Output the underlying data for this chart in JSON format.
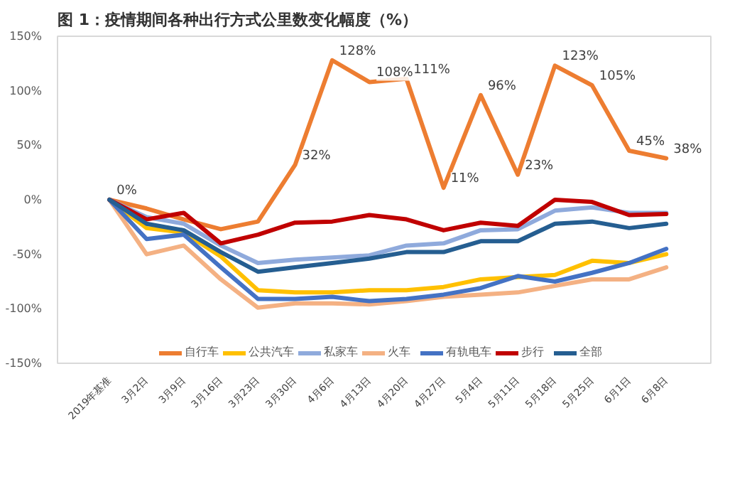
{
  "chart_data": {
    "type": "line",
    "title": "图 1：疫情期间各种出行方式公里数变化幅度（%）",
    "categories": [
      "2019年基准",
      "3月2日",
      "3月9日",
      "3月16日",
      "3月23日",
      "3月30日",
      "4月6日",
      "4月13日",
      "4月20日",
      "4月27日",
      "5月4日",
      "5月11日",
      "5月18日",
      "5月25日",
      "6月1日",
      "6月8日"
    ],
    "ylim": [
      -150,
      150
    ],
    "yticks": [
      {
        "value": -150,
        "label": "-150%"
      },
      {
        "value": -100,
        "label": "-100%"
      },
      {
        "value": -50,
        "label": "-50%"
      },
      {
        "value": 0,
        "label": "0%"
      },
      {
        "value": 50,
        "label": "50%"
      },
      {
        "value": 100,
        "label": "100%"
      },
      {
        "value": 150,
        "label": "150%"
      }
    ],
    "grid": false,
    "legend": "bottom",
    "marker": "none",
    "line_style": "solid",
    "series": [
      {
        "name": "自行车",
        "color": "#ed7d31",
        "values": [
          0,
          -8,
          -18,
          -27,
          -20,
          32,
          128,
          108,
          111,
          11,
          96,
          23,
          123,
          105,
          45,
          38
        ],
        "value_labels": [
          "0%",
          null,
          null,
          null,
          null,
          "32%",
          "128%",
          "108%",
          "111%",
          "11%",
          "96%",
          "23%",
          "123%",
          "105%",
          "45%",
          "38%"
        ]
      },
      {
        "name": "公共汽车",
        "color": "#ffc000",
        "values": [
          0,
          -26,
          -30,
          -52,
          -83,
          -85,
          -85,
          -83,
          -83,
          -80,
          -73,
          -71,
          -69,
          -56,
          -58,
          -50
        ]
      },
      {
        "name": "私家车",
        "color": "#8faadc",
        "values": [
          0,
          -16,
          -22,
          -42,
          -58,
          -55,
          -53,
          -51,
          -42,
          -40,
          -28,
          -27,
          -10,
          -7,
          -12,
          -12
        ]
      },
      {
        "name": "火车",
        "color": "#f4b183",
        "values": [
          0,
          -50,
          -42,
          -73,
          -99,
          -95,
          -95,
          -96,
          -93,
          -89,
          -87,
          -85,
          -79,
          -73,
          -73,
          -62
        ]
      },
      {
        "name": "有轨电车",
        "color": "#4472c4",
        "values": [
          0,
          -36,
          -32,
          -62,
          -91,
          -91,
          -89,
          -93,
          -91,
          -87,
          -81,
          -70,
          -75,
          -67,
          -58,
          -45
        ]
      },
      {
        "name": "步行",
        "color": "#c00000",
        "values": [
          0,
          -18,
          -12,
          -40,
          -32,
          -21,
          -20,
          -14,
          -18,
          -28,
          -21,
          -24,
          0,
          -2,
          -14,
          -13
        ]
      },
      {
        "name": "全部",
        "color": "#255e91",
        "values": [
          0,
          -22,
          -28,
          -48,
          -66,
          -62,
          -58,
          -54,
          -48,
          -48,
          -38,
          -38,
          -22,
          -20,
          -26,
          -22
        ]
      }
    ]
  }
}
